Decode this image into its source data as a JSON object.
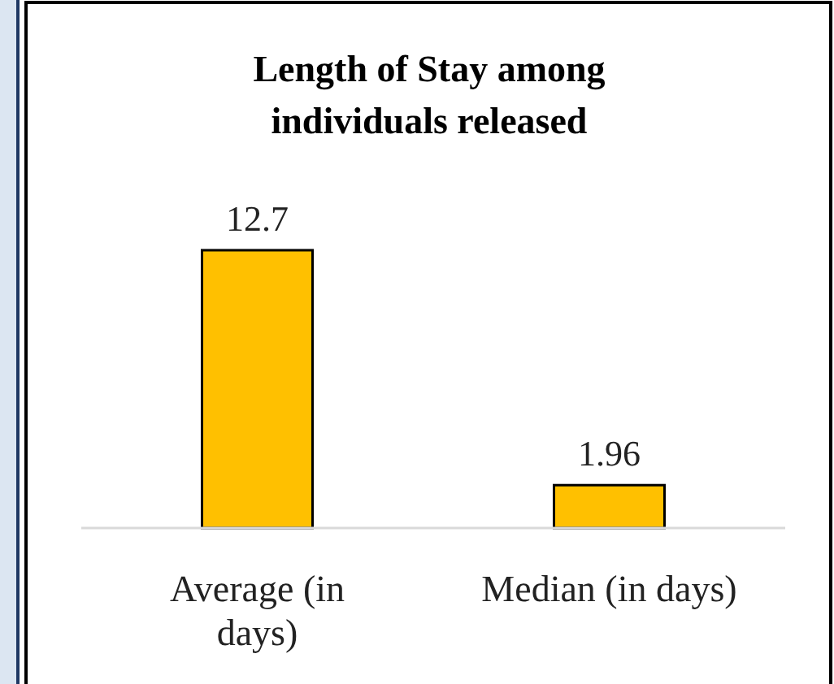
{
  "chart_data": {
    "type": "bar",
    "title": "Length of Stay among individuals released",
    "categories": [
      "Average (in days)",
      "Median (in days)"
    ],
    "values": [
      12.7,
      1.96
    ],
    "color": "#ffc000",
    "data_labels": true
  }
}
